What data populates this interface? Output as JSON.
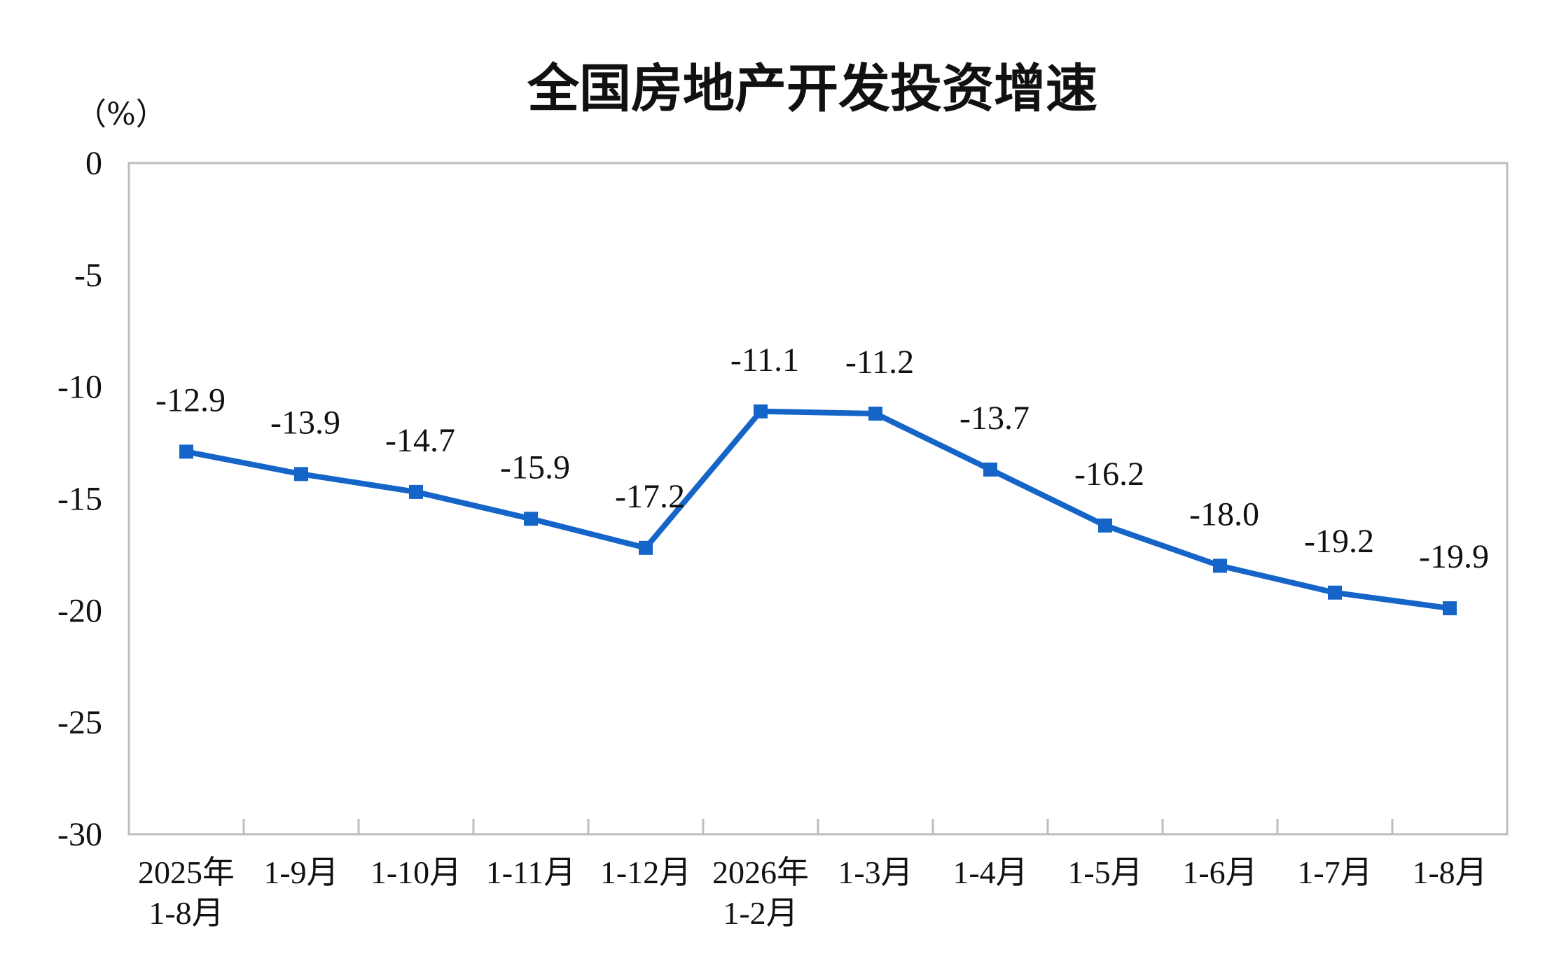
{
  "chart_data": {
    "type": "line",
    "title": "全国房地产开发投资增速",
    "unit_label": "（%）",
    "categories": [
      [
        "2025年",
        "1-8月"
      ],
      [
        "1-9月"
      ],
      [
        "1-10月"
      ],
      [
        "1-11月"
      ],
      [
        "1-12月"
      ],
      [
        "2026年",
        "1-2月"
      ],
      [
        "1-3月"
      ],
      [
        "1-4月"
      ],
      [
        "1-5月"
      ],
      [
        "1-6月"
      ],
      [
        "1-7月"
      ],
      [
        "1-8月"
      ]
    ],
    "series": [
      {
        "values": [
          -12.9,
          -13.9,
          -14.7,
          -15.9,
          -17.2,
          -11.1,
          -11.2,
          -13.7,
          -16.2,
          -18.0,
          -19.2,
          -19.9
        ],
        "labels": [
          "-12.9",
          "-13.9",
          "-14.7",
          "-15.9",
          "-17.2",
          "-11.1",
          "-11.2",
          "-13.7",
          "-16.2",
          "-18.0",
          "-19.2",
          "-19.9"
        ],
        "color": "#1565c8"
      }
    ],
    "ylim": [
      -30,
      0
    ],
    "yticks": [
      0,
      -5,
      -10,
      -15,
      -20,
      -25,
      -30
    ],
    "ytick_labels": [
      "0",
      "-5",
      "-10",
      "-15",
      "-20",
      "-25",
      "-30"
    ],
    "grid": false,
    "legend": "none"
  }
}
